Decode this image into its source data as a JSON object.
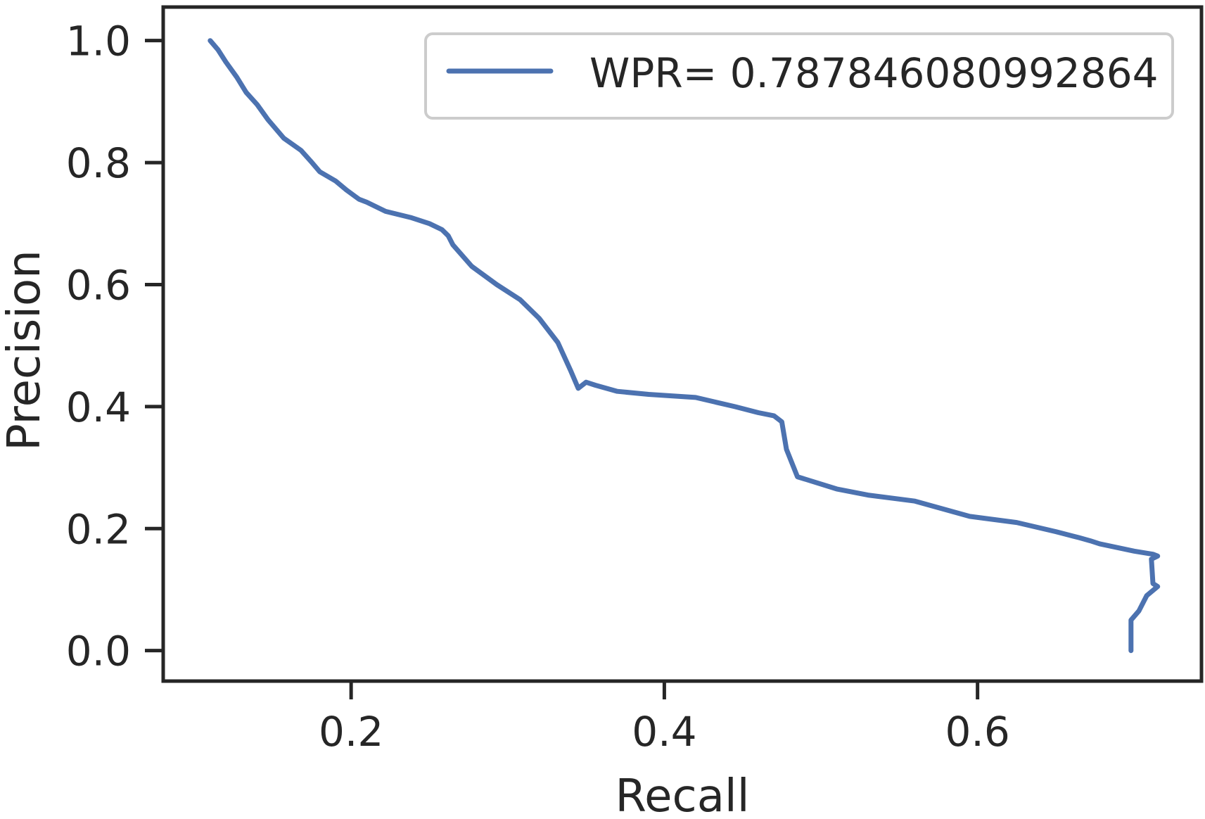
{
  "chart_data": {
    "type": "line",
    "title": "",
    "xlabel": "Recall",
    "ylabel": "Precision",
    "xlim": [
      0.08,
      0.743
    ],
    "ylim": [
      -0.05,
      1.055
    ],
    "xticks": [
      0.2,
      0.4,
      0.6
    ],
    "xtick_labels": [
      "0.2",
      "0.4",
      "0.6"
    ],
    "yticks": [
      0.0,
      0.2,
      0.4,
      0.6,
      0.8,
      1.0
    ],
    "ytick_labels": [
      "0.0",
      "0.2",
      "0.4",
      "0.6",
      "0.8",
      "1.0"
    ],
    "grid": false,
    "legend": {
      "position": "top-right"
    },
    "colors": {
      "line": "#4c72b0",
      "axes": "#262626",
      "legend_border": "#cccccc"
    },
    "series": [
      {
        "name": "WPR= 0.787846080992864",
        "x": [
          0.11,
          0.115,
          0.12,
          0.127,
          0.133,
          0.14,
          0.147,
          0.157,
          0.168,
          0.175,
          0.18,
          0.19,
          0.197,
          0.205,
          0.21,
          0.222,
          0.238,
          0.25,
          0.258,
          0.262,
          0.265,
          0.277,
          0.293,
          0.308,
          0.32,
          0.332,
          0.34,
          0.345,
          0.35,
          0.356,
          0.37,
          0.39,
          0.42,
          0.445,
          0.46,
          0.47,
          0.475,
          0.478,
          0.485,
          0.51,
          0.53,
          0.56,
          0.595,
          0.625,
          0.65,
          0.665,
          0.672,
          0.678,
          0.7,
          0.712,
          0.715,
          0.711,
          0.712,
          0.715,
          0.708,
          0.703,
          0.698,
          0.698
        ],
        "y": [
          1.0,
          0.985,
          0.965,
          0.94,
          0.915,
          0.895,
          0.87,
          0.84,
          0.82,
          0.8,
          0.785,
          0.77,
          0.755,
          0.74,
          0.735,
          0.72,
          0.71,
          0.7,
          0.69,
          0.68,
          0.665,
          0.63,
          0.6,
          0.575,
          0.545,
          0.505,
          0.46,
          0.43,
          0.44,
          0.435,
          0.425,
          0.42,
          0.415,
          0.4,
          0.39,
          0.385,
          0.375,
          0.33,
          0.285,
          0.265,
          0.255,
          0.245,
          0.22,
          0.21,
          0.195,
          0.185,
          0.18,
          0.175,
          0.163,
          0.158,
          0.155,
          0.15,
          0.11,
          0.105,
          0.09,
          0.065,
          0.05,
          0.0
        ]
      }
    ]
  }
}
